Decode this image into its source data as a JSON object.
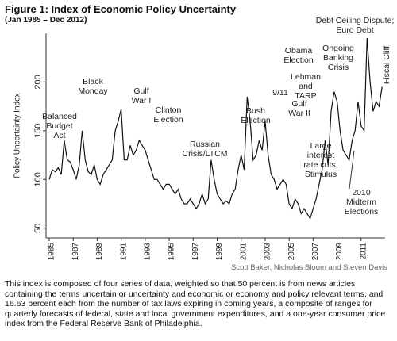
{
  "chart_data": {
    "type": "line",
    "title": "Figure 1: Index of Economic Policy Uncertainty",
    "subtitle": "(Jan 1985 – Dec 2012)",
    "y_label": "Policy Uncertainty Index",
    "source": "Scott Baker, Nicholas Bloom and Steven Davis",
    "caption": "This index is composed of four series of data, weighted so that 50 percent is from news articles containing the terms uncertain or uncertainty and economic or economy and policy relevant terms, and 16.63 percent each from the number of tax laws expiring in coming years, a composite of ranges for quarterly forecasts of federal, state and local government expenditures, and a one-year consumer price index from the Federal Reserve Bank of Philadelphia.",
    "xlim": [
      1985,
      2013
    ],
    "xticks": [
      1985,
      1987,
      1989,
      1991,
      1993,
      1995,
      1997,
      1999,
      2001,
      2003,
      2005,
      2007,
      2009,
      2011
    ],
    "ylim": [
      40,
      250
    ],
    "yticks": [
      50,
      100,
      150,
      200
    ],
    "x": [
      1985,
      1985.25,
      1985.5,
      1985.75,
      1986,
      1986.25,
      1986.5,
      1986.75,
      1987,
      1987.25,
      1987.5,
      1987.75,
      1988,
      1988.25,
      1988.5,
      1988.75,
      1989,
      1989.25,
      1989.5,
      1989.75,
      1990,
      1990.25,
      1990.5,
      1990.75,
      1991,
      1991.25,
      1991.5,
      1991.75,
      1992,
      1992.25,
      1992.5,
      1992.75,
      1993,
      1993.25,
      1993.5,
      1993.75,
      1994,
      1994.25,
      1994.5,
      1994.75,
      1995,
      1995.25,
      1995.5,
      1995.75,
      1996,
      1996.25,
      1996.5,
      1996.75,
      1997,
      1997.25,
      1997.5,
      1997.75,
      1998,
      1998.25,
      1998.5,
      1998.75,
      1999,
      1999.25,
      1999.5,
      1999.75,
      2000,
      2000.25,
      2000.5,
      2000.75,
      2001,
      2001.25,
      2001.5,
      2001.75,
      2002,
      2002.25,
      2002.5,
      2002.75,
      2003,
      2003.25,
      2003.5,
      2003.75,
      2004,
      2004.25,
      2004.5,
      2004.75,
      2005,
      2005.25,
      2005.5,
      2005.75,
      2006,
      2006.25,
      2006.5,
      2006.75,
      2007,
      2007.25,
      2007.5,
      2007.75,
      2008,
      2008.25,
      2008.5,
      2008.75,
      2009,
      2009.25,
      2009.5,
      2009.75,
      2010,
      2010.25,
      2010.5,
      2010.75,
      2011,
      2011.25,
      2011.5,
      2011.75,
      2012,
      2012.25,
      2012.5,
      2012.75
    ],
    "series": [
      {
        "name": "Policy Uncertainty Index",
        "color": "#111111",
        "values": [
          100,
          110,
          108,
          112,
          105,
          140,
          120,
          118,
          110,
          100,
          115,
          150,
          120,
          108,
          105,
          115,
          100,
          95,
          105,
          110,
          115,
          120,
          150,
          160,
          172,
          120,
          120,
          135,
          125,
          130,
          140,
          135,
          130,
          120,
          110,
          100,
          100,
          95,
          90,
          95,
          95,
          90,
          85,
          90,
          80,
          75,
          75,
          80,
          75,
          70,
          75,
          85,
          75,
          80,
          120,
          100,
          85,
          80,
          75,
          78,
          75,
          85,
          90,
          110,
          125,
          110,
          185,
          160,
          120,
          125,
          140,
          130,
          160,
          125,
          105,
          100,
          90,
          95,
          100,
          95,
          75,
          70,
          80,
          75,
          65,
          70,
          65,
          60,
          70,
          80,
          95,
          110,
          140,
          115,
          170,
          190,
          180,
          150,
          130,
          125,
          120,
          140,
          150,
          180,
          155,
          150,
          245,
          200,
          170,
          180,
          175,
          195
        ]
      }
    ],
    "annotations": [
      [
        "Balanced",
        "Budget",
        "Act"
      ],
      [
        "Black",
        "Monday"
      ],
      [
        "Gulf",
        "War I"
      ],
      [
        "Clinton",
        "Election"
      ],
      [
        "Russian",
        "Crisis/LTCM"
      ],
      [
        "Bush",
        "Election"
      ],
      [
        "9/11"
      ],
      [
        "Gulf",
        "War II"
      ],
      [
        "Large",
        "interest",
        "rate cuts,",
        "Stimulus"
      ],
      [
        "Lehman",
        "and",
        "TARP"
      ],
      [
        "Obama",
        "Election"
      ],
      [
        "Ongoing",
        "Banking",
        "Crisis"
      ],
      [
        "Debt Ceiling Dispute;",
        "Euro Debt"
      ],
      [
        "Fiscal Cliff"
      ],
      [
        "2010",
        "Midterm",
        "Elections"
      ]
    ]
  }
}
